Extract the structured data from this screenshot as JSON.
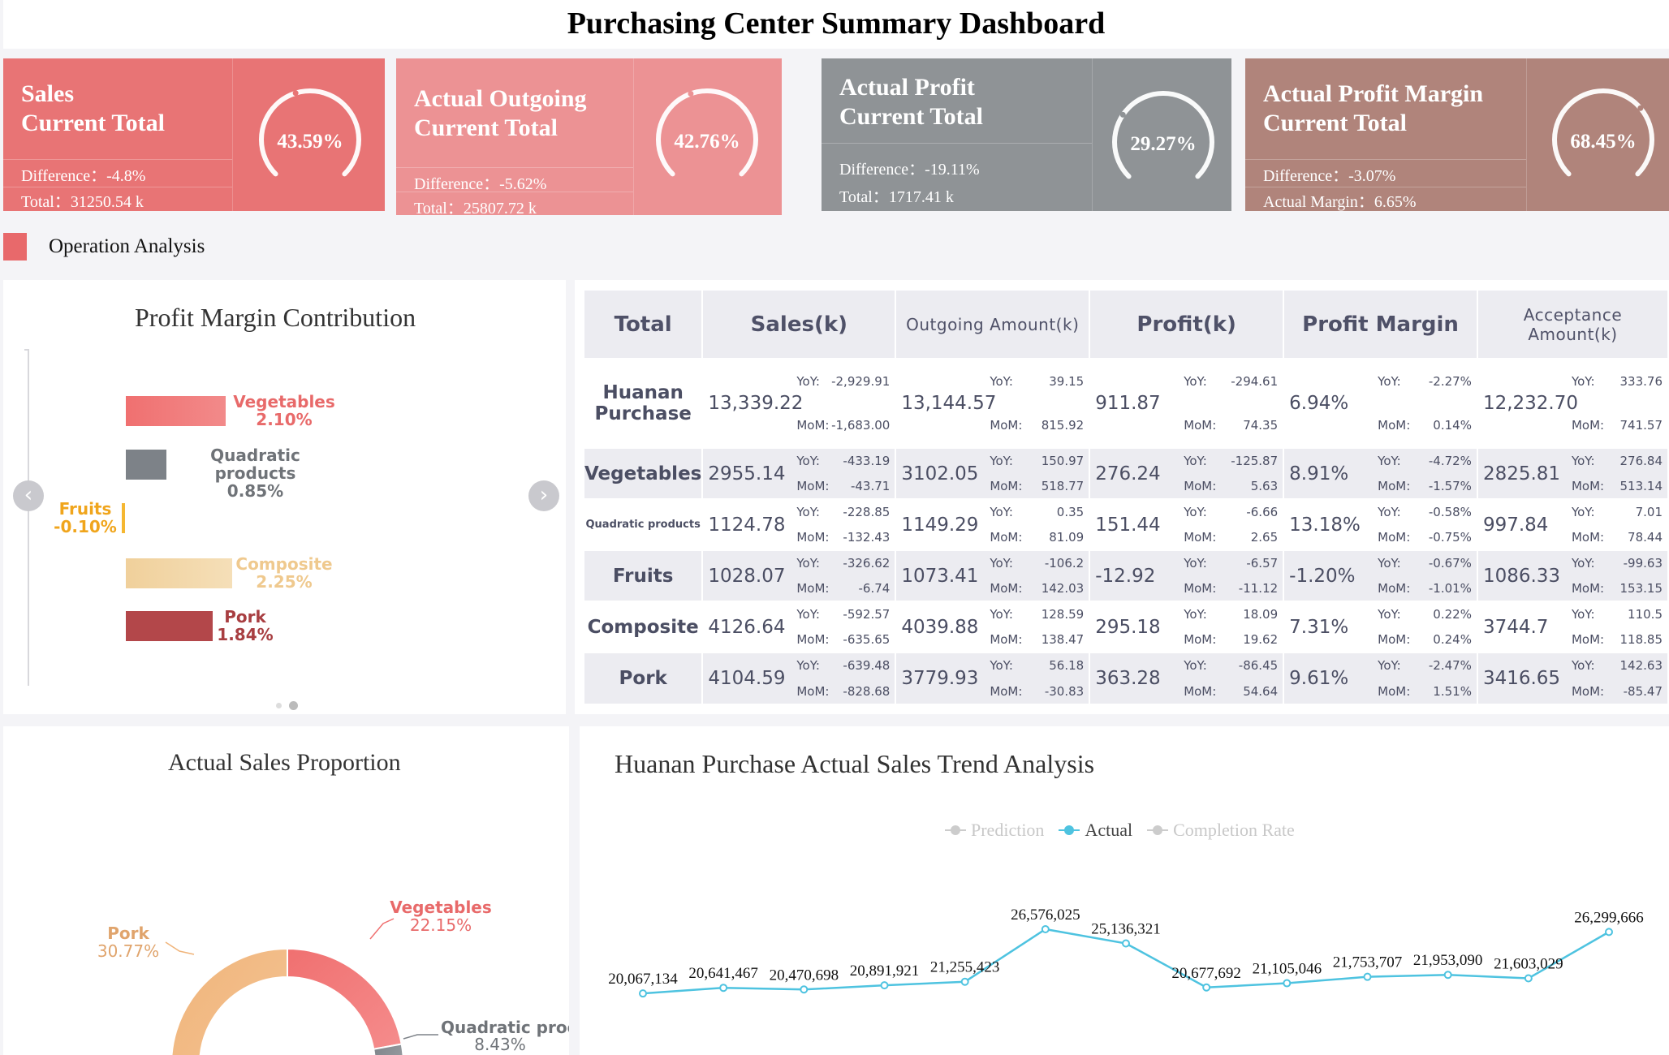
{
  "header": {
    "title": "Purchasing Center Summary Dashboard"
  },
  "kpis": [
    {
      "title_line1": "Sales",
      "title_line2": "Current Total",
      "diff_label": "Difference：",
      "diff_value": "-4.8%",
      "second_label": "Total：",
      "second_value": "31250.54 k",
      "gauge_text": "43.59%",
      "gauge_value": 43.59,
      "color": "#e87475"
    },
    {
      "title_line1": "Actual Outgoing",
      "title_line2": "Current Total",
      "diff_label": "Difference：",
      "diff_value": "-5.62%",
      "second_label": "Total：",
      "second_value": "25807.72 k",
      "gauge_text": "42.76%",
      "gauge_value": 42.76,
      "color": "#ec9294"
    },
    {
      "title_line1": "Actual Profit",
      "title_line2": "Current Total",
      "diff_label": "Difference：",
      "diff_value": "-19.11%",
      "second_label": "Total：",
      "second_value": "1717.41 k",
      "gauge_text": "29.27%",
      "gauge_value": 29.27,
      "color": "#8f9396"
    },
    {
      "title_line1": "Actual Profit Margin",
      "title_line2": "Current Total",
      "diff_label": "Difference：",
      "diff_value": "-3.07%",
      "second_label": "Actual Margin：",
      "second_value": "6.65%",
      "gauge_text": "68.45%",
      "gauge_value": 68.45,
      "color": "#b0847b"
    }
  ],
  "section": {
    "label": "Operation Analysis",
    "accent": "#e8696b"
  },
  "profit_margin": {
    "title": "Profit Margin Contribution",
    "items": [
      {
        "name": "Vegetables",
        "value_text": "2.10%",
        "value": 2.1,
        "color": "#f07070"
      },
      {
        "name": "Quadratic products",
        "value_text": "0.85%",
        "value": 0.85,
        "color": "#7d8288"
      },
      {
        "name": "Fruits",
        "value_text": "-0.10%",
        "value": -0.1,
        "color": "#f5b731"
      },
      {
        "name": "Composite",
        "value_text": "2.25%",
        "value": 2.25,
        "color": "#f0d09b"
      },
      {
        "name": "Pork",
        "value_text": "1.84%",
        "value": 1.84,
        "color": "#b3474a"
      }
    ]
  },
  "table": {
    "headers": [
      "Total",
      "Sales(k)",
      "Outgoing Amount(k)",
      "Profit(k)",
      "Profit Margin",
      "Acceptance Amount(k)"
    ],
    "yoy_label": "YoY:",
    "mom_label": "MoM:",
    "rows": [
      {
        "name": "Huanan Purchase",
        "cells": [
          {
            "v": "13,339.22",
            "yoy": "-2,929.91",
            "mom": "-1,683.00"
          },
          {
            "v": "13,144.57",
            "yoy": "39.15",
            "mom": "815.92"
          },
          {
            "v": "911.87",
            "yoy": "-294.61",
            "mom": "74.35"
          },
          {
            "v": "6.94%",
            "yoy": "-2.27%",
            "mom": "0.14%"
          },
          {
            "v": "12,232.70",
            "yoy": "333.76",
            "mom": "741.57"
          }
        ]
      },
      {
        "name": "Vegetables",
        "cells": [
          {
            "v": "2955.14",
            "yoy": "-433.19",
            "mom": "-43.71"
          },
          {
            "v": "3102.05",
            "yoy": "150.97",
            "mom": "518.77"
          },
          {
            "v": "276.24",
            "yoy": "-125.87",
            "mom": "5.63"
          },
          {
            "v": "8.91%",
            "yoy": "-4.72%",
            "mom": "-1.57%"
          },
          {
            "v": "2825.81",
            "yoy": "276.84",
            "mom": "513.14"
          }
        ]
      },
      {
        "name": "Quadratic products",
        "cells": [
          {
            "v": "1124.78",
            "yoy": "-228.85",
            "mom": "-132.43"
          },
          {
            "v": "1149.29",
            "yoy": "0.35",
            "mom": "81.09"
          },
          {
            "v": "151.44",
            "yoy": "-6.66",
            "mom": "2.65"
          },
          {
            "v": "13.18%",
            "yoy": "-0.58%",
            "mom": "-0.75%"
          },
          {
            "v": "997.84",
            "yoy": "7.01",
            "mom": "78.44"
          }
        ]
      },
      {
        "name": "Fruits",
        "cells": [
          {
            "v": "1028.07",
            "yoy": "-326.62",
            "mom": "-6.74"
          },
          {
            "v": "1073.41",
            "yoy": "-106.2",
            "mom": "142.03"
          },
          {
            "v": "-12.92",
            "yoy": "-6.57",
            "mom": "-11.12"
          },
          {
            "v": "-1.20%",
            "yoy": "-0.67%",
            "mom": "-1.01%"
          },
          {
            "v": "1086.33",
            "yoy": "-99.63",
            "mom": "153.15"
          }
        ]
      },
      {
        "name": "Composite",
        "cells": [
          {
            "v": "4126.64",
            "yoy": "-592.57",
            "mom": "-635.65"
          },
          {
            "v": "4039.88",
            "yoy": "128.59",
            "mom": "138.47"
          },
          {
            "v": "295.18",
            "yoy": "18.09",
            "mom": "19.62"
          },
          {
            "v": "7.31%",
            "yoy": "0.22%",
            "mom": "0.24%"
          },
          {
            "v": "3744.7",
            "yoy": "110.5",
            "mom": "118.85"
          }
        ]
      },
      {
        "name": "Pork",
        "cells": [
          {
            "v": "4104.59",
            "yoy": "-639.48",
            "mom": "-828.68"
          },
          {
            "v": "3779.93",
            "yoy": "56.18",
            "mom": "-30.83"
          },
          {
            "v": "363.28",
            "yoy": "-86.45",
            "mom": "54.64"
          },
          {
            "v": "9.61%",
            "yoy": "-2.47%",
            "mom": "1.51%"
          },
          {
            "v": "3416.65",
            "yoy": "142.63",
            "mom": "-85.47"
          }
        ]
      }
    ]
  },
  "sales_proportion": {
    "title": "Actual Sales Proportion",
    "slices": [
      {
        "name": "Vegetables",
        "value_text": "22.15%",
        "value": 22.15,
        "color": "#f07070"
      },
      {
        "name": "Quadratic proc",
        "value_text": "8.43%",
        "value": 8.43,
        "color": "#7d8288"
      },
      {
        "name": "Pork",
        "value_text": "30.77%",
        "value": 30.77,
        "color": "#f0b47a"
      }
    ]
  },
  "chart_data": {
    "type": "line",
    "title": "Huanan Purchase Actual Sales Trend Analysis",
    "legend": [
      "Prediction",
      "Actual",
      "Completion Rate"
    ],
    "legend_colors": [
      "#cccccc",
      "#4ec3e0",
      "#cccccc"
    ],
    "series": [
      {
        "name": "Actual",
        "color": "#4ec3e0",
        "values": [
          20067134,
          20641467,
          20470698,
          20891921,
          21255423,
          26576025,
          25136321,
          20677692,
          21105046,
          21753707,
          21953090,
          21603029,
          26299666
        ]
      }
    ],
    "labels": [
      "20,067,134",
      "20,641,467",
      "20,470,698",
      "20,891,921",
      "21,255,423",
      "26,576,025",
      "25,136,321",
      "20,677,692",
      "21,105,046",
      "21,753,707",
      "21,953,090",
      "21,603,029",
      "26,299,666"
    ]
  }
}
